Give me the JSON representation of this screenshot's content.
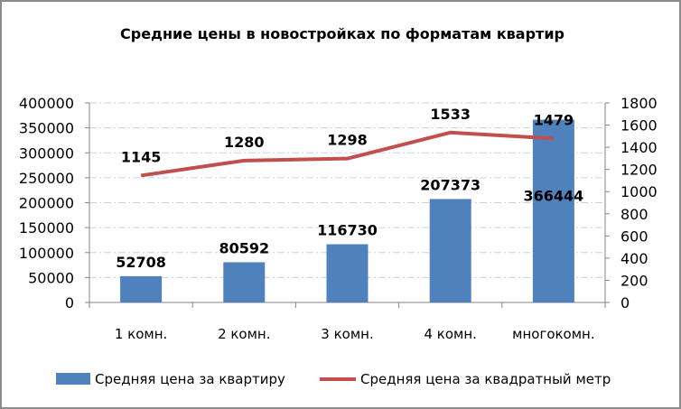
{
  "chart_data": {
    "type": "bar",
    "title": "Средние цены в новостройках по форматам квартир",
    "categories": [
      "1 комн.",
      "2 комн.",
      "3 комн.",
      "4 комн.",
      "многокомн."
    ],
    "series": [
      {
        "name": "Средняя цена за квартиру",
        "type": "bar",
        "axis": "left",
        "color": "#4F81BD",
        "values": [
          52708,
          80592,
          116730,
          207373,
          366444
        ]
      },
      {
        "name": "Средняя цена за квадратный метр",
        "type": "line",
        "axis": "right",
        "color": "#C0504D",
        "values": [
          1145,
          1280,
          1298,
          1533,
          1479
        ]
      }
    ],
    "y_left": {
      "range": [
        0,
        400000
      ],
      "ticks": [
        "0",
        "50000",
        "100000",
        "150000",
        "200000",
        "250000",
        "300000",
        "350000",
        "400000"
      ]
    },
    "y_right": {
      "range": [
        0,
        1800
      ],
      "ticks": [
        "0",
        "200",
        "400",
        "600",
        "800",
        "1000",
        "1200",
        "1400",
        "1600",
        "1800"
      ]
    },
    "grid": true,
    "legend_position": "bottom"
  }
}
